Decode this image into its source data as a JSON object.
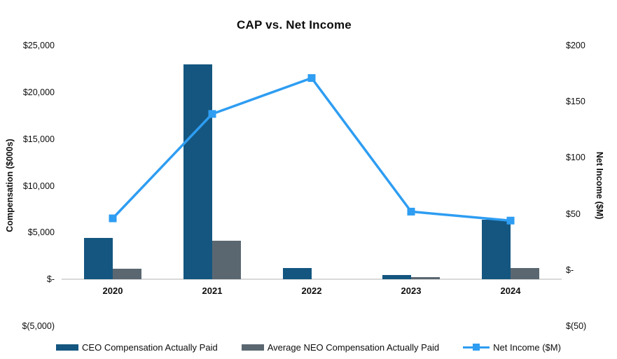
{
  "title": "CAP vs. Net Income",
  "colors": {
    "ceo_bar": "#145680",
    "neo_bar": "#5A6771",
    "net_income_line": "#2E9DF2",
    "axis_line": "#d9d9d9",
    "text": "#0d0d0d"
  },
  "chart_data": {
    "type": "combo-bar-line",
    "title": "CAP vs. Net Income",
    "categories": [
      "2020",
      "2021",
      "2022",
      "2023",
      "2024"
    ],
    "series": [
      {
        "name": "CEO Compensation Actually Paid",
        "type": "bar",
        "axis": "left",
        "color": "#145680",
        "values": [
          4400,
          23000,
          1200,
          450,
          6400
        ]
      },
      {
        "name": "Average NEO Compensation Actually Paid",
        "type": "bar",
        "axis": "left",
        "color": "#5A6771",
        "values": [
          1100,
          4100,
          0,
          250,
          1200
        ]
      },
      {
        "name": "Net Income ($M)",
        "type": "line",
        "axis": "right",
        "color": "#2E9DF2",
        "marker": "square",
        "values": [
          46,
          139,
          171,
          52,
          44
        ]
      }
    ],
    "left_axis": {
      "label": "Compensation ($000s)",
      "min": -5000,
      "max": 25000,
      "step": 5000,
      "ticks": [
        "$25,000",
        "$20,000",
        "$15,000",
        "$10,000",
        "$5,000",
        "$-",
        "$(5,000)"
      ]
    },
    "right_axis": {
      "label": "Net Income ($M)",
      "min": -50,
      "max": 200,
      "step": 50,
      "ticks": [
        "$200",
        "$150",
        "$100",
        "$50",
        "$-",
        "$(50)"
      ]
    },
    "grid": false,
    "legend_position": "bottom"
  }
}
